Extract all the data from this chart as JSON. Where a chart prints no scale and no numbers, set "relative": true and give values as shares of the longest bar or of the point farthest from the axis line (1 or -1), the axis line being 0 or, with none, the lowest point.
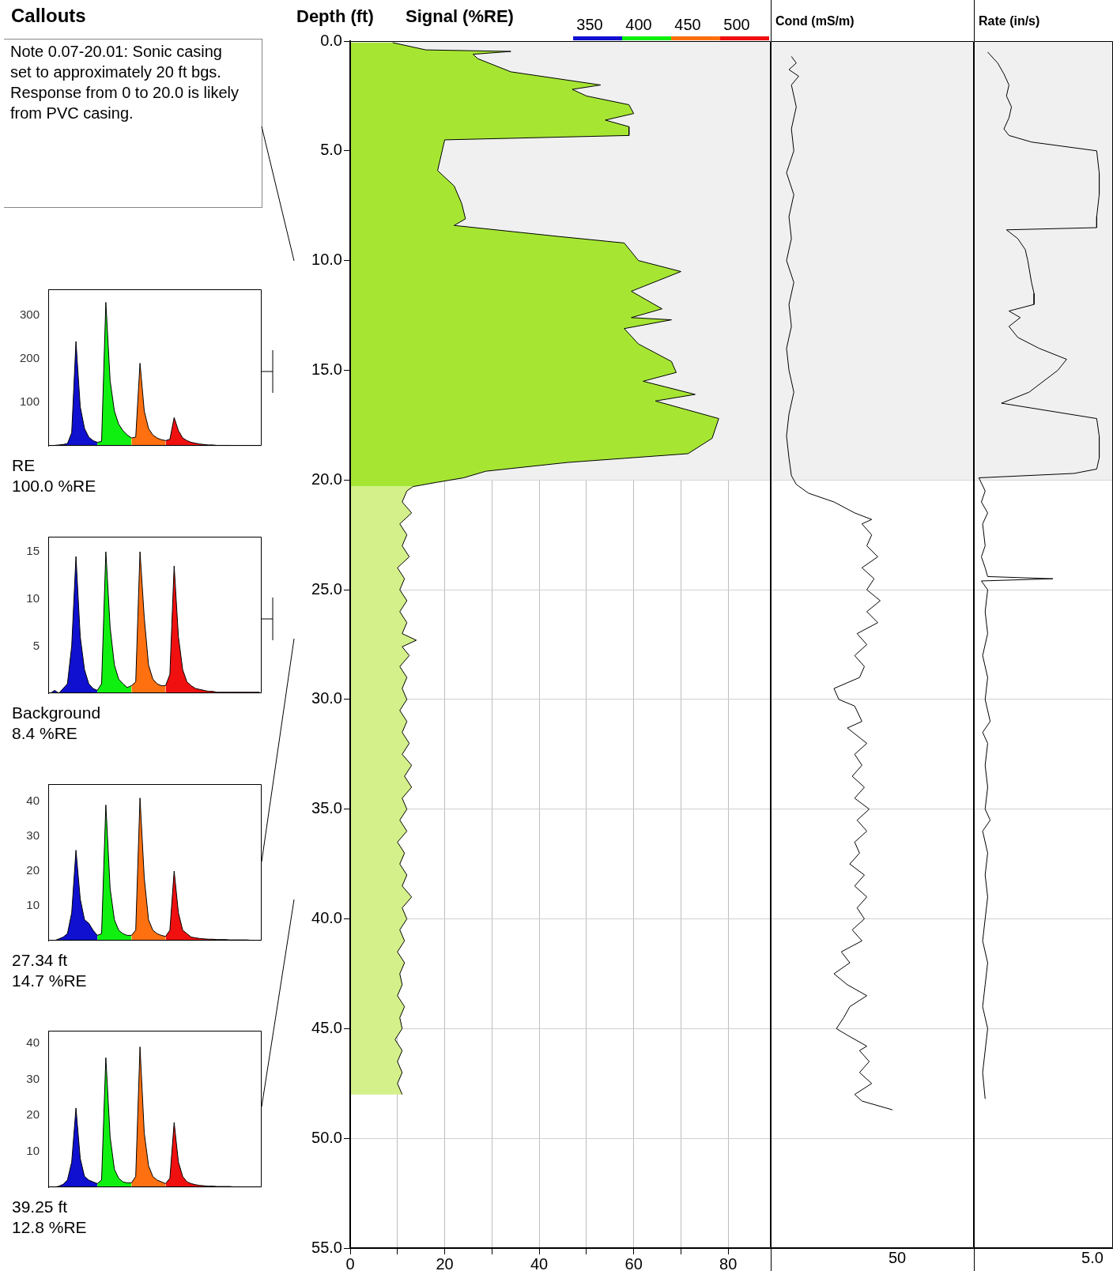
{
  "chart_data": [
    {
      "type": "other",
      "title": "Callouts",
      "annotations": [
        "Note 0.07-20.01: Sonic casing set to approximately 20 ft bgs. Response from 0 to 20.0 is likely from PVC casing."
      ]
    },
    {
      "type": "area",
      "categories": [
        null,
        null,
        null,
        null,
        null,
        null,
        null,
        null,
        null,
        null,
        null,
        null,
        null,
        null,
        null,
        null,
        null,
        null,
        null,
        null,
        null,
        null,
        null,
        null,
        null,
        null,
        null,
        null,
        null,
        null,
        null,
        null,
        null,
        null,
        null,
        null,
        null,
        null,
        null,
        null,
        null,
        null,
        null,
        null,
        null,
        null,
        null,
        null,
        null,
        null
      ],
      "ylim": [
        0,
        360
      ],
      "yticks": [
        100,
        200,
        300
      ],
      "annotations": [
        "RE",
        "100.0 %RE"
      ],
      "series": [
        {
          "color": "#1010d0",
          "values": [
            0,
            1,
            2,
            3,
            5,
            30,
            240,
            90,
            40,
            20,
            12,
            8,
            null,
            null,
            null,
            null,
            null,
            null,
            null,
            null,
            null,
            null,
            null,
            null,
            null,
            null,
            null,
            null,
            null,
            null,
            null,
            null,
            null,
            null,
            null,
            null,
            null,
            null,
            null,
            null,
            null,
            null,
            null,
            null,
            null,
            null,
            null,
            null,
            null,
            null
          ]
        },
        {
          "color": "#10f010",
          "values": [
            null,
            null,
            null,
            null,
            null,
            null,
            null,
            null,
            null,
            null,
            null,
            8,
            10,
            330,
            150,
            80,
            50,
            35,
            25,
            18,
            null,
            null,
            null,
            null,
            null,
            null,
            null,
            null,
            null,
            null,
            null,
            null,
            null,
            null,
            null,
            null,
            null,
            null,
            null,
            null,
            null,
            null,
            null,
            null,
            null,
            null,
            null,
            null,
            null,
            null
          ]
        },
        {
          "color": "#ff7010",
          "values": [
            null,
            null,
            null,
            null,
            null,
            null,
            null,
            null,
            null,
            null,
            null,
            null,
            null,
            null,
            null,
            null,
            null,
            null,
            null,
            18,
            20,
            190,
            80,
            40,
            25,
            18,
            14,
            12,
            null,
            null,
            null,
            null,
            null,
            null,
            null,
            null,
            null,
            null,
            null,
            null,
            null,
            null,
            null,
            null,
            null,
            null,
            null,
            null,
            null,
            null
          ]
        },
        {
          "color": "#f01010",
          "values": [
            null,
            null,
            null,
            null,
            null,
            null,
            null,
            null,
            null,
            null,
            null,
            null,
            null,
            null,
            null,
            null,
            null,
            null,
            null,
            null,
            null,
            null,
            null,
            null,
            null,
            null,
            null,
            12,
            15,
            65,
            35,
            18,
            12,
            8,
            6,
            4,
            3,
            2,
            2,
            1,
            1,
            1,
            1,
            0,
            0,
            0,
            0,
            0,
            0,
            0
          ]
        }
      ]
    },
    {
      "type": "area",
      "categories": [
        null,
        null,
        null,
        null,
        null,
        null,
        null,
        null,
        null,
        null,
        null,
        null,
        null,
        null,
        null,
        null,
        null,
        null,
        null,
        null,
        null,
        null,
        null,
        null,
        null,
        null,
        null,
        null,
        null,
        null,
        null,
        null,
        null,
        null,
        null,
        null,
        null,
        null,
        null,
        null,
        null,
        null,
        null,
        null,
        null,
        null,
        null,
        null,
        null,
        null
      ],
      "ylim": [
        0,
        16.6
      ],
      "yticks": [
        5,
        10,
        15
      ],
      "annotations": [
        "Background",
        "8.4 %RE"
      ],
      "series": [
        {
          "color": "#1010d0",
          "values": [
            0,
            0.3,
            0,
            0.5,
            1,
            5,
            14.5,
            6,
            2.5,
            1,
            0.5,
            0.3,
            null,
            null,
            null,
            null,
            null,
            null,
            null,
            null,
            null,
            null,
            null,
            null,
            null,
            null,
            null,
            null,
            null,
            null,
            null,
            null,
            null,
            null,
            null,
            null,
            null,
            null,
            null,
            null,
            null,
            null,
            null,
            null,
            null,
            null,
            null,
            null,
            null,
            null
          ]
        },
        {
          "color": "#10f010",
          "values": [
            null,
            null,
            null,
            null,
            null,
            null,
            null,
            null,
            null,
            null,
            null,
            0.3,
            1,
            15,
            7,
            3,
            1.5,
            1,
            0.6,
            0.8,
            null,
            null,
            null,
            null,
            null,
            null,
            null,
            null,
            null,
            null,
            null,
            null,
            null,
            null,
            null,
            null,
            null,
            null,
            null,
            null,
            null,
            null,
            null,
            null,
            null,
            null,
            null,
            null,
            null,
            null
          ]
        },
        {
          "color": "#ff7010",
          "values": [
            null,
            null,
            null,
            null,
            null,
            null,
            null,
            null,
            null,
            null,
            null,
            null,
            null,
            null,
            null,
            null,
            null,
            null,
            null,
            0.8,
            1.2,
            15,
            8,
            3,
            1.5,
            1,
            0.8,
            0.8,
            null,
            null,
            null,
            null,
            null,
            null,
            null,
            null,
            null,
            null,
            null,
            null,
            null,
            null,
            null,
            null,
            null,
            null,
            null,
            null,
            null,
            null
          ]
        },
        {
          "color": "#f01010",
          "values": [
            null,
            null,
            null,
            null,
            null,
            null,
            null,
            null,
            null,
            null,
            null,
            null,
            null,
            null,
            null,
            null,
            null,
            null,
            null,
            null,
            null,
            null,
            null,
            null,
            null,
            null,
            null,
            0.8,
            2,
            13.5,
            6,
            2.5,
            1.2,
            0.8,
            0.5,
            0.4,
            0.3,
            0.2,
            0.2,
            0.1,
            0.1,
            0.1,
            0.1,
            0.1,
            0.1,
            0.1,
            0.1,
            0.1,
            0.1,
            0.1
          ]
        }
      ]
    },
    {
      "type": "area",
      "categories": [
        null,
        null,
        null,
        null,
        null,
        null,
        null,
        null,
        null,
        null,
        null,
        null,
        null,
        null,
        null,
        null,
        null,
        null,
        null,
        null,
        null,
        null,
        null,
        null,
        null,
        null,
        null,
        null,
        null,
        null,
        null,
        null,
        null,
        null,
        null,
        null,
        null,
        null,
        null,
        null,
        null,
        null,
        null,
        null,
        null,
        null,
        null,
        null,
        null,
        null
      ],
      "ylim": [
        0,
        45
      ],
      "yticks": [
        10,
        20,
        30,
        40
      ],
      "annotations": [
        "27.34 ft",
        "14.7 %RE"
      ],
      "series": [
        {
          "color": "#1010d0",
          "values": [
            0,
            0,
            0.5,
            1,
            2,
            8,
            26,
            12,
            6,
            5,
            3,
            1.5,
            null,
            null,
            null,
            null,
            null,
            null,
            null,
            null,
            null,
            null,
            null,
            null,
            null,
            null,
            null,
            null,
            null,
            null,
            null,
            null,
            null,
            null,
            null,
            null,
            null,
            null,
            null,
            null,
            null,
            null,
            null,
            null,
            null,
            null,
            null,
            null,
            null,
            null
          ]
        },
        {
          "color": "#10f010",
          "values": [
            null,
            null,
            null,
            null,
            null,
            null,
            null,
            null,
            null,
            null,
            null,
            1.5,
            2,
            39,
            15,
            6,
            3,
            2,
            1.5,
            1.5,
            null,
            null,
            null,
            null,
            null,
            null,
            null,
            null,
            null,
            null,
            null,
            null,
            null,
            null,
            null,
            null,
            null,
            null,
            null,
            null,
            null,
            null,
            null,
            null,
            null,
            null,
            null,
            null,
            null,
            null
          ]
        },
        {
          "color": "#ff7010",
          "values": [
            null,
            null,
            null,
            null,
            null,
            null,
            null,
            null,
            null,
            null,
            null,
            null,
            null,
            null,
            null,
            null,
            null,
            null,
            null,
            1.5,
            3,
            41,
            18,
            6,
            3,
            2,
            1.5,
            1.2,
            null,
            null,
            null,
            null,
            null,
            null,
            null,
            null,
            null,
            null,
            null,
            null,
            null,
            null,
            null,
            null,
            null,
            null,
            null,
            null,
            null,
            null
          ]
        },
        {
          "color": "#f01010",
          "values": [
            null,
            null,
            null,
            null,
            null,
            null,
            null,
            null,
            null,
            null,
            null,
            null,
            null,
            null,
            null,
            null,
            null,
            null,
            null,
            null,
            null,
            null,
            null,
            null,
            null,
            null,
            null,
            1.2,
            3,
            20,
            8,
            3,
            2,
            1,
            0.8,
            0.6,
            0.5,
            0.4,
            0.4,
            0.3,
            0.3,
            0.3,
            0.2,
            0.2,
            0.2,
            0.2,
            0.2,
            0.1,
            0.1,
            0.1
          ]
        }
      ]
    },
    {
      "type": "area",
      "categories": [
        null,
        null,
        null,
        null,
        null,
        null,
        null,
        null,
        null,
        null,
        null,
        null,
        null,
        null,
        null,
        null,
        null,
        null,
        null,
        null,
        null,
        null,
        null,
        null,
        null,
        null,
        null,
        null,
        null,
        null,
        null,
        null,
        null,
        null,
        null,
        null,
        null,
        null,
        null,
        null,
        null,
        null,
        null,
        null,
        null,
        null,
        null,
        null,
        null,
        null
      ],
      "ylim": [
        0,
        43.5
      ],
      "yticks": [
        10,
        20,
        30,
        40
      ],
      "annotations": [
        "39.25 ft",
        "12.8 %RE"
      ],
      "series": [
        {
          "color": "#1010d0",
          "values": [
            0,
            0,
            0.3,
            0.8,
            2,
            7,
            22,
            8,
            3,
            2,
            1.5,
            1,
            null,
            null,
            null,
            null,
            null,
            null,
            null,
            null,
            null,
            null,
            null,
            null,
            null,
            null,
            null,
            null,
            null,
            null,
            null,
            null,
            null,
            null,
            null,
            null,
            null,
            null,
            null,
            null,
            null,
            null,
            null,
            null,
            null,
            null,
            null,
            null,
            null,
            null
          ]
        },
        {
          "color": "#10f010",
          "values": [
            null,
            null,
            null,
            null,
            null,
            null,
            null,
            null,
            null,
            null,
            null,
            1,
            2,
            36,
            14,
            5,
            2.5,
            1.5,
            1.2,
            1.2,
            null,
            null,
            null,
            null,
            null,
            null,
            null,
            null,
            null,
            null,
            null,
            null,
            null,
            null,
            null,
            null,
            null,
            null,
            null,
            null,
            null,
            null,
            null,
            null,
            null,
            null,
            null,
            null,
            null,
            null
          ]
        },
        {
          "color": "#ff7010",
          "values": [
            null,
            null,
            null,
            null,
            null,
            null,
            null,
            null,
            null,
            null,
            null,
            null,
            null,
            null,
            null,
            null,
            null,
            null,
            null,
            1.2,
            3,
            39,
            15,
            6,
            3,
            2,
            1.5,
            1,
            null,
            null,
            null,
            null,
            null,
            null,
            null,
            null,
            null,
            null,
            null,
            null,
            null,
            null,
            null,
            null,
            null,
            null,
            null,
            null,
            null,
            null
          ]
        },
        {
          "color": "#f01010",
          "values": [
            null,
            null,
            null,
            null,
            null,
            null,
            null,
            null,
            null,
            null,
            null,
            null,
            null,
            null,
            null,
            null,
            null,
            null,
            null,
            null,
            null,
            null,
            null,
            null,
            null,
            null,
            null,
            1,
            2.5,
            18,
            7,
            3,
            1.5,
            1,
            0.7,
            0.5,
            0.4,
            0.3,
            0.3,
            0.2,
            0.2,
            0.2,
            0.2,
            0.1,
            0.1,
            0.1,
            0.1,
            0.1,
            0.1,
            0.1
          ]
        }
      ]
    },
    {
      "type": "area",
      "orientation": "horizontal",
      "title": "Signal (%RE)",
      "ylabel": "Depth (ft)",
      "annotations": [
        "350",
        "400",
        "450",
        "500"
      ],
      "grid": true,
      "xlim": [
        0,
        89
      ],
      "xticks": [
        0,
        {
          "value": 10,
          "label": null
        },
        20,
        {
          "value": 30,
          "label": null
        },
        40,
        {
          "value": 50,
          "label": null
        },
        60,
        {
          "value": 70,
          "label": null
        },
        80
      ],
      "ylim": [
        55,
        0
      ],
      "yticks": [
        {
          "value": 0,
          "label": "0.0"
        },
        {
          "value": 5,
          "label": "5.0"
        },
        {
          "value": 10,
          "label": "10.0"
        },
        {
          "value": 15,
          "label": "15.0"
        },
        {
          "value": 20,
          "label": "20.0"
        },
        {
          "value": 25,
          "label": "25.0"
        },
        {
          "value": 30,
          "label": "30.0"
        },
        {
          "value": 35,
          "label": "35.0"
        },
        {
          "value": 40,
          "label": "40.0"
        },
        {
          "value": 45,
          "label": "45.0"
        },
        {
          "value": 50,
          "label": "50.0"
        },
        {
          "value": 55,
          "label": "55.0"
        }
      ],
      "bands": [
        {
          "axis": "y",
          "from": 0,
          "to": 20,
          "color": "#f0f0f0"
        }
      ],
      "series": [
        {
          "color": "#a6e633",
          "x": [
            0.07,
            0.4,
            0.47,
            0.6,
            0.8,
            1.4,
            2.0,
            2.2,
            2.5,
            2.9,
            3.3,
            3.6,
            3.9,
            4.3,
            4.5,
            5.9,
            6.6,
            7.4,
            8.1,
            8.4,
            8.9,
            9.2,
            10.0,
            10.5,
            11.4,
            12.2,
            12.6,
            12.7,
            13.1,
            13.8,
            14.6,
            15.1,
            15.5,
            16.1,
            16.4,
            17.2,
            18.1,
            18.8,
            19.2,
            19.6,
            19.9,
            20.1,
            20.3
          ],
          "values": [
            9,
            16,
            34,
            26,
            27,
            34,
            53,
            47,
            50,
            59,
            60,
            54,
            59,
            59,
            20,
            18.5,
            22,
            23.6,
            24.4,
            22,
            44,
            58,
            61,
            70,
            59.5,
            66,
            59.5,
            68,
            58,
            61,
            68,
            69,
            62,
            73,
            64.6,
            78,
            76.6,
            71.5,
            46,
            28.7,
            24,
            18.5,
            13.3
          ]
        },
        {
          "color": "#d4f08a",
          "x": [
            20.3,
            20.5,
            21,
            21.5,
            22,
            22.5,
            23,
            23.5,
            24,
            24.5,
            25,
            25.5,
            26,
            26.5,
            27,
            27.3,
            27.6,
            28,
            28.5,
            29,
            29.5,
            30,
            30.5,
            31,
            31.5,
            32,
            32.5,
            33,
            33.5,
            34,
            34.5,
            35,
            35.5,
            36,
            36.5,
            37,
            37.5,
            38,
            38.5,
            39,
            39.5,
            40,
            40.5,
            41,
            41.5,
            42,
            42.5,
            43,
            43.5,
            44,
            44.5,
            45,
            45.5,
            46,
            46.5,
            47,
            47.5,
            48
          ],
          "values": [
            13.3,
            12,
            11,
            13,
            10.5,
            12,
            11,
            12.5,
            10,
            11.5,
            10.5,
            12,
            10.5,
            12,
            11,
            14,
            11,
            12.5,
            10.5,
            12,
            11,
            12,
            10.5,
            12,
            11,
            12.5,
            11,
            13,
            11.5,
            13,
            11,
            12,
            10.5,
            12,
            10,
            11.5,
            10.5,
            12,
            11,
            13,
            11,
            12,
            10.5,
            11.5,
            10,
            11.5,
            10.5,
            11,
            10,
            11.5,
            10.5,
            11,
            9.5,
            11,
            10,
            11,
            10,
            11
          ]
        }
      ]
    },
    {
      "type": "line",
      "orientation": "horizontal",
      "relative": true,
      "xlabel": "Cond (mS/m)",
      "annotations": [
        "50"
      ],
      "grid": "y",
      "tick_labels": false,
      "ylim": [
        55,
        0
      ],
      "yticks": [
        0,
        5,
        10,
        15,
        20,
        25,
        30,
        35,
        40,
        45,
        50,
        55
      ],
      "bands": [
        {
          "axis": "y",
          "from": 0,
          "to": 20,
          "color": "#f0f0f0"
        }
      ],
      "series": [
        {
          "color": "#000000",
          "x": [
            0.7,
            1.0,
            1.3,
            1.6,
            2,
            3,
            4,
            5,
            6,
            7,
            8,
            9,
            10,
            11,
            12,
            13,
            14,
            15,
            16,
            17,
            18,
            19,
            19.8,
            20.2,
            20.6,
            21,
            21.5,
            21.8,
            22,
            22.5,
            23,
            23.5,
            24,
            24.5,
            25,
            25.5,
            26,
            26.5,
            27,
            27.5,
            28,
            28.5,
            29,
            29.5,
            30,
            30.3,
            31,
            31.3,
            32,
            32.5,
            33,
            33.5,
            34,
            34.5,
            35,
            35.5,
            36,
            36.5,
            37,
            37.5,
            38,
            38.5,
            39,
            39.5,
            40,
            40.5,
            41,
            41.5,
            42,
            42.5,
            43,
            43.5,
            44,
            44.5,
            45,
            45.3,
            45.8,
            46,
            46.5,
            47,
            47.5,
            48,
            48.3,
            48.7
          ],
          "values": [
            0.17,
            0.21,
            0.15,
            0.23,
            0.17,
            0.21,
            0.17,
            0.19,
            0.13,
            0.19,
            0.15,
            0.17,
            0.13,
            0.19,
            0.15,
            0.17,
            0.13,
            0.15,
            0.19,
            0.15,
            0.13,
            0.15,
            0.17,
            0.21,
            0.31,
            0.52,
            0.69,
            0.83,
            0.75,
            0.83,
            0.79,
            0.88,
            0.75,
            0.85,
            0.79,
            0.9,
            0.79,
            0.88,
            0.71,
            0.79,
            0.69,
            0.77,
            0.73,
            0.52,
            0.56,
            0.69,
            0.75,
            0.63,
            0.79,
            0.69,
            0.75,
            0.67,
            0.77,
            0.69,
            0.81,
            0.71,
            0.79,
            0.69,
            0.73,
            0.65,
            0.77,
            0.69,
            0.79,
            0.71,
            0.77,
            0.67,
            0.75,
            0.58,
            0.65,
            0.52,
            0.63,
            0.79,
            0.65,
            0.6,
            0.54,
            0.63,
            0.79,
            0.73,
            0.81,
            0.73,
            0.83,
            0.69,
            0.75,
            1
          ]
        }
      ]
    },
    {
      "type": "line",
      "orientation": "horizontal",
      "relative": true,
      "xlabel": "Rate (in/s)",
      "annotations": [
        "5.0"
      ],
      "grid": "y",
      "tick_labels": false,
      "ylim": [
        55,
        0
      ],
      "yticks": [
        0,
        5,
        10,
        15,
        20,
        25,
        30,
        35,
        40,
        45,
        50,
        55
      ],
      "bands": [
        {
          "axis": "y",
          "from": 0,
          "to": 20,
          "color": "#f0f0f0"
        }
      ],
      "series": [
        {
          "color": "#000000",
          "x": [
            0.5,
            1,
            1.5,
            2,
            2.5,
            3,
            3.5,
            4,
            4.3,
            4.6,
            5.0,
            6,
            7,
            8,
            8.5,
            8.6,
            9,
            9.5,
            10,
            11,
            11.5,
            12,
            12.3,
            12.6,
            13,
            13.5,
            14,
            14.5,
            15,
            16,
            16.5,
            17.2,
            18,
            19,
            19.5,
            19.7,
            19.9,
            20.5,
            21,
            21.5,
            22,
            23,
            23.5,
            24,
            24.4,
            24.5,
            24.6,
            25,
            26,
            27,
            28,
            29,
            30,
            31,
            31.5,
            32,
            33,
            34,
            35,
            35.5,
            36,
            37,
            38,
            39,
            40,
            41,
            42,
            43,
            44,
            45,
            46,
            47,
            48.2
          ],
          "values": [
            0.11,
            0.19,
            0.24,
            0.28,
            0.26,
            0.3,
            0.28,
            0.24,
            0.28,
            0.46,
            0.98,
            1,
            1,
            0.98,
            0.98,
            0.26,
            0.35,
            0.41,
            0.43,
            0.46,
            0.48,
            0.48,
            0.28,
            0.37,
            0.28,
            0.35,
            0.52,
            0.74,
            0.67,
            0.44,
            0.22,
            0.98,
            1,
            1,
            0.98,
            0.8,
            0.04,
            0.09,
            0.06,
            0.11,
            0.07,
            0.09,
            0.06,
            0.09,
            0.11,
            0.63,
            0.06,
            0.11,
            0.09,
            0.11,
            0.07,
            0.11,
            0.09,
            0.13,
            0.07,
            0.11,
            0.09,
            0.11,
            0.09,
            0.13,
            0.07,
            0.11,
            0.09,
            0.11,
            0.09,
            0.07,
            0.11,
            0.09,
            0.07,
            0.11,
            0.09,
            0.07,
            0.09
          ]
        }
      ]
    }
  ]
}
